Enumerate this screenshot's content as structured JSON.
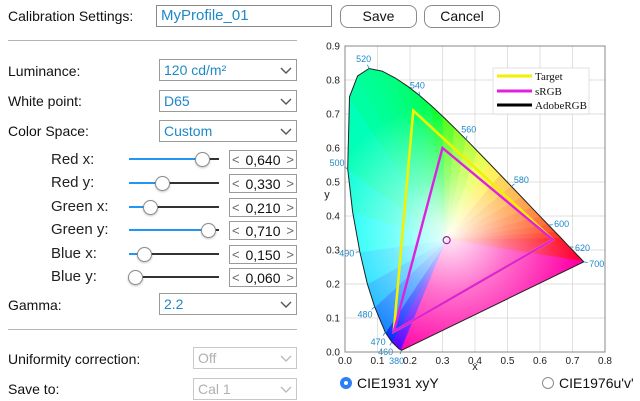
{
  "header": {
    "label": "Calibration Settings:",
    "profile_name": "MyProfile_01",
    "save_label": "Save",
    "cancel_label": "Cancel"
  },
  "settings": {
    "luminance": {
      "label": "Luminance:",
      "value": "120 cd/m²"
    },
    "white_point": {
      "label": "White point:",
      "value": "D65"
    },
    "color_space": {
      "label": "Color Space:",
      "value": "Custom"
    },
    "gamma": {
      "label": "Gamma:",
      "value": "2.2"
    },
    "uniformity": {
      "label": "Uniformity correction:",
      "value": "Off"
    },
    "save_to": {
      "label": "Save to:",
      "value": "Cal 1"
    }
  },
  "primaries": [
    {
      "label": "Red x:",
      "value": "0,640",
      "fill": 0.8
    },
    {
      "label": "Red y:",
      "value": "0,330",
      "fill": 0.36
    },
    {
      "label": "Green x:",
      "value": "0,210",
      "fill": 0.22
    },
    {
      "label": "Green y:",
      "value": "0,710",
      "fill": 0.87
    },
    {
      "label": "Blue x:",
      "value": "0,150",
      "fill": 0.15
    },
    {
      "label": "Blue y:",
      "value": "0,060",
      "fill": 0.05
    }
  ],
  "spin_arrows": {
    "left": "<",
    "right": ">"
  },
  "chart_data": {
    "type": "scatter",
    "xlabel": "x",
    "ylabel": "y",
    "xlim": [
      0.0,
      0.8
    ],
    "ylim": [
      0.0,
      0.9
    ],
    "x_ticks": [
      "0.0",
      "0.1",
      "0.2",
      "0.3",
      "0.4",
      "0.5",
      "0.6",
      "0.7",
      "0.8"
    ],
    "y_ticks": [
      "0.0",
      "0.1",
      "0.2",
      "0.3",
      "0.4",
      "0.5",
      "0.6",
      "0.7",
      "0.8",
      "0.9"
    ],
    "grid": true,
    "legend_position": "top-right",
    "wavelength_labels": [
      {
        "nm": "380",
        "x": 0.174,
        "y": 0.005
      },
      {
        "nm": "460",
        "x": 0.144,
        "y": 0.03
      },
      {
        "nm": "470",
        "x": 0.124,
        "y": 0.058
      },
      {
        "nm": "480",
        "x": 0.091,
        "y": 0.133
      },
      {
        "nm": "490",
        "x": 0.045,
        "y": 0.295
      },
      {
        "nm": "500",
        "x": 0.008,
        "y": 0.538
      },
      {
        "nm": "520",
        "x": 0.074,
        "y": 0.834
      },
      {
        "nm": "540",
        "x": 0.23,
        "y": 0.754
      },
      {
        "nm": "560",
        "x": 0.373,
        "y": 0.624
      },
      {
        "nm": "580",
        "x": 0.512,
        "y": 0.487
      },
      {
        "nm": "600",
        "x": 0.627,
        "y": 0.373
      },
      {
        "nm": "620",
        "x": 0.691,
        "y": 0.309
      },
      {
        "nm": "700",
        "x": 0.735,
        "y": 0.265
      }
    ],
    "locus": [
      [
        0.1741,
        0.005
      ],
      [
        0.1666,
        0.0089
      ],
      [
        0.144,
        0.0297
      ],
      [
        0.1241,
        0.0578
      ],
      [
        0.0913,
        0.1327
      ],
      [
        0.0687,
        0.2007
      ],
      [
        0.0454,
        0.295
      ],
      [
        0.0235,
        0.4127
      ],
      [
        0.0082,
        0.5384
      ],
      [
        0.0139,
        0.7502
      ],
      [
        0.0389,
        0.812
      ],
      [
        0.0743,
        0.8338
      ],
      [
        0.1142,
        0.8262
      ],
      [
        0.1547,
        0.8059
      ],
      [
        0.1929,
        0.7816
      ],
      [
        0.2296,
        0.7543
      ],
      [
        0.2658,
        0.7243
      ],
      [
        0.3016,
        0.6923
      ],
      [
        0.3373,
        0.6589
      ],
      [
        0.3731,
        0.6245
      ],
      [
        0.4087,
        0.5896
      ],
      [
        0.4441,
        0.5547
      ],
      [
        0.4788,
        0.5202
      ],
      [
        0.5125,
        0.4866
      ],
      [
        0.5448,
        0.4544
      ],
      [
        0.5752,
        0.4242
      ],
      [
        0.6029,
        0.3965
      ],
      [
        0.627,
        0.3725
      ],
      [
        0.6482,
        0.3514
      ],
      [
        0.6658,
        0.334
      ],
      [
        0.6801,
        0.3197
      ],
      [
        0.6915,
        0.3083
      ],
      [
        0.7006,
        0.2993
      ],
      [
        0.7079,
        0.292
      ],
      [
        0.714,
        0.2859
      ],
      [
        0.719,
        0.2809
      ],
      [
        0.723,
        0.277
      ],
      [
        0.726,
        0.274
      ],
      [
        0.7283,
        0.2717
      ],
      [
        0.73,
        0.27
      ],
      [
        0.7347,
        0.2653
      ]
    ],
    "series": [
      {
        "name": "Target",
        "color": "#f2f200",
        "points": [
          [
            0.64,
            0.33
          ],
          [
            0.21,
            0.71
          ],
          [
            0.15,
            0.06
          ]
        ]
      },
      {
        "name": "sRGB",
        "color": "#e020e0",
        "points": [
          [
            0.64,
            0.33
          ],
          [
            0.3,
            0.6
          ],
          [
            0.15,
            0.06
          ]
        ]
      },
      {
        "name": "AdobeRGB",
        "color": "#000000",
        "points": [
          [
            0.64,
            0.33
          ],
          [
            0.21,
            0.71
          ],
          [
            0.15,
            0.06
          ]
        ]
      }
    ],
    "white_point": {
      "x": 0.3127,
      "y": 0.329
    }
  },
  "diagram_mode": {
    "option_1": "CIE1931 xyY",
    "option_2": "CIE1976u'v'",
    "selected": "CIE1931 xyY"
  },
  "colors": {
    "accent": "#2196f3",
    "value_text": "#1e88c8",
    "disabled_text": "#b0b0b0"
  }
}
